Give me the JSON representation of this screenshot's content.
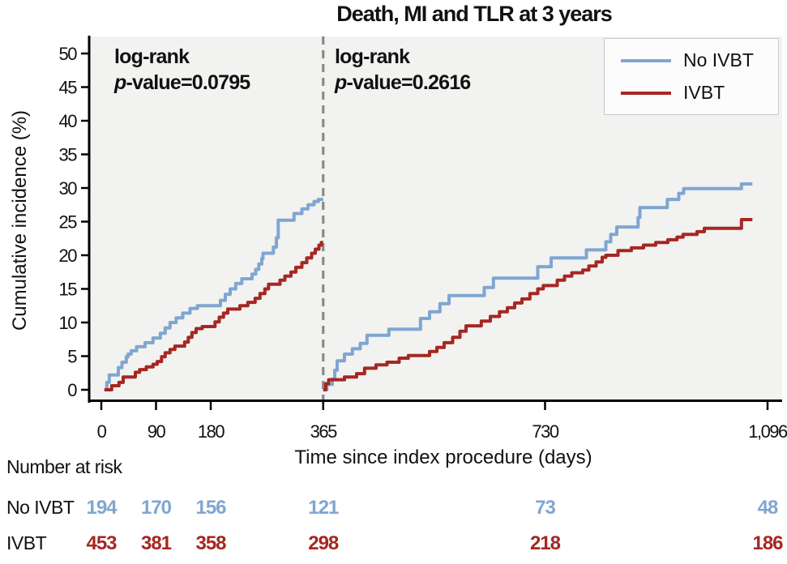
{
  "chart_data": {
    "type": "line",
    "subtype": "kaplan-meier-step",
    "title": "Death, MI and TLR at 3 years",
    "xlabel": "Time since index procedure (days)",
    "ylabel": "Cumulative incidence (%)",
    "xlim": [
      0,
      1096
    ],
    "ylim": [
      0,
      50
    ],
    "grid": false,
    "legend_position": "top-right",
    "plot_bg_color": "#f2f2f0",
    "landmark_line_day": 365,
    "landmark_line_color": "#8a8a8a",
    "x_ticks": [
      {
        "day": 0,
        "label": "0"
      },
      {
        "day": 90,
        "label": "90"
      },
      {
        "day": 180,
        "label": "180"
      },
      {
        "day": 365,
        "label": "365"
      },
      {
        "day": 730,
        "label": "730"
      },
      {
        "day": 1096,
        "label": "1,096"
      }
    ],
    "y_ticks": [
      {
        "value": 0,
        "label": "0"
      },
      {
        "value": 5,
        "label": "5"
      },
      {
        "value": 10,
        "label": "10"
      },
      {
        "value": 15,
        "label": "15"
      },
      {
        "value": 20,
        "label": "20"
      },
      {
        "value": 25,
        "label": "25"
      },
      {
        "value": 30,
        "label": "30"
      },
      {
        "value": 35,
        "label": "35"
      },
      {
        "value": 40,
        "label": "40"
      },
      {
        "value": 45,
        "label": "45"
      },
      {
        "value": 50,
        "label": "50"
      }
    ],
    "annotations": [
      {
        "line1": "log-rank",
        "p_label": "p",
        "p_value_text": "-value=0.0795"
      },
      {
        "line1": "log-rank",
        "p_label": "p",
        "p_value_text": "-value=0.2616"
      }
    ],
    "series": [
      {
        "name": "No IVBT",
        "color": "#7FA6D1",
        "segments": [
          {
            "end_day": 365,
            "points": [
              [
                5,
                0
              ],
              [
                9,
                1.1
              ],
              [
                13,
                2.2
              ],
              [
                28,
                3.3
              ],
              [
                34,
                4.1
              ],
              [
                41,
                4.9
              ],
              [
                44,
                5.3
              ],
              [
                49,
                5.8
              ],
              [
                58,
                6.4
              ],
              [
                72,
                7.0
              ],
              [
                85,
                7.7
              ],
              [
                97,
                8.4
              ],
              [
                105,
                9.2
              ],
              [
                113,
                10.0
              ],
              [
                123,
                10.7
              ],
              [
                134,
                11.4
              ],
              [
                146,
                12.1
              ],
              [
                158,
                12.5
              ],
              [
                196,
                13.3
              ],
              [
                204,
                14.2
              ],
              [
                212,
                15.0
              ],
              [
                221,
                15.8
              ],
              [
                231,
                16.5
              ],
              [
                248,
                17.2
              ],
              [
                254,
                17.9
              ],
              [
                259,
                18.7
              ],
              [
                264,
                19.5
              ],
              [
                266,
                20.3
              ],
              [
                283,
                21.2
              ],
              [
                288,
                22.6
              ],
              [
                291,
                25.2
              ],
              [
                317,
                26.2
              ],
              [
                330,
                26.9
              ],
              [
                340,
                27.5
              ],
              [
                350,
                28.0
              ],
              [
                357,
                28.3
              ]
            ]
          },
          {
            "end_day": 1071,
            "points": [
              [
                365,
                0
              ],
              [
                371,
                0.8
              ],
              [
                380,
                1.6
              ],
              [
                384,
                2.9
              ],
              [
                388,
                4.3
              ],
              [
                400,
                5.3
              ],
              [
                413,
                6.1
              ],
              [
                426,
                6.9
              ],
              [
                437,
                8.1
              ],
              [
                473,
                9.0
              ],
              [
                525,
                10.6
              ],
              [
                540,
                11.6
              ],
              [
                557,
                12.8
              ],
              [
                572,
                14.0
              ],
              [
                630,
                15.2
              ],
              [
                645,
                16.6
              ],
              [
                718,
                18.3
              ],
              [
                740,
                19.6
              ],
              [
                798,
                20.8
              ],
              [
                830,
                22.0
              ],
              [
                838,
                23.1
              ],
              [
                848,
                24.2
              ],
              [
                883,
                25.6
              ],
              [
                886,
                27.1
              ],
              [
                931,
                28.3
              ],
              [
                950,
                29.2
              ],
              [
                958,
                29.9
              ],
              [
                1053,
                30.6
              ]
            ]
          }
        ]
      },
      {
        "name": "IVBT",
        "color": "#A52722",
        "segments": [
          {
            "end_day": 365,
            "points": [
              [
                5,
                0
              ],
              [
                17,
                0.6
              ],
              [
                29,
                1.1
              ],
              [
                36,
                1.9
              ],
              [
                56,
                2.6
              ],
              [
                63,
                3.0
              ],
              [
                74,
                3.4
              ],
              [
                85,
                3.8
              ],
              [
                92,
                4.2
              ],
              [
                99,
                4.9
              ],
              [
                105,
                5.5
              ],
              [
                113,
                6.0
              ],
              [
                121,
                6.5
              ],
              [
                137,
                7.1
              ],
              [
                143,
                7.8
              ],
              [
                149,
                8.5
              ],
              [
                156,
                9.1
              ],
              [
                166,
                9.4
              ],
              [
                187,
                10.1
              ],
              [
                194,
                10.8
              ],
              [
                201,
                11.4
              ],
              [
                208,
                12.0
              ],
              [
                228,
                12.5
              ],
              [
                241,
                13.0
              ],
              [
                253,
                13.6
              ],
              [
                261,
                14.3
              ],
              [
                269,
                15.0
              ],
              [
                275,
                15.7
              ],
              [
                294,
                16.3
              ],
              [
                302,
                16.9
              ],
              [
                312,
                17.5
              ],
              [
                320,
                18.2
              ],
              [
                330,
                18.9
              ],
              [
                338,
                19.6
              ],
              [
                346,
                20.3
              ],
              [
                352,
                20.9
              ],
              [
                358,
                21.5
              ],
              [
                362,
                21.9
              ]
            ]
          },
          {
            "end_day": 1071,
            "points": [
              [
                365,
                0
              ],
              [
                369,
                0.9
              ],
              [
                374,
                1.5
              ],
              [
                400,
                1.9
              ],
              [
                420,
                2.4
              ],
              [
                433,
                3.2
              ],
              [
                452,
                3.7
              ],
              [
                470,
                4.1
              ],
              [
                490,
                4.7
              ],
              [
                505,
                5.1
              ],
              [
                540,
                5.7
              ],
              [
                552,
                6.3
              ],
              [
                564,
                7.0
              ],
              [
                578,
                7.8
              ],
              [
                590,
                8.7
              ],
              [
                600,
                9.5
              ],
              [
                625,
                10.2
              ],
              [
                640,
                10.9
              ],
              [
                655,
                11.6
              ],
              [
                668,
                12.2
              ],
              [
                680,
                12.9
              ],
              [
                692,
                13.5
              ],
              [
                705,
                14.3
              ],
              [
                718,
                15.0
              ],
              [
                727,
                15.5
              ],
              [
                750,
                16.3
              ],
              [
                762,
                16.9
              ],
              [
                774,
                17.4
              ],
              [
                792,
                17.8
              ],
              [
                802,
                18.4
              ],
              [
                814,
                19.0
              ],
              [
                824,
                19.7
              ],
              [
                830,
                20.0
              ],
              [
                850,
                20.7
              ],
              [
                872,
                21.1
              ],
              [
                892,
                21.5
              ],
              [
                912,
                21.9
              ],
              [
                932,
                22.3
              ],
              [
                947,
                22.7
              ],
              [
                957,
                23.1
              ],
              [
                980,
                23.5
              ],
              [
                992,
                24.0
              ],
              [
                1053,
                25.3
              ]
            ]
          }
        ]
      }
    ]
  },
  "risk_table": {
    "heading": "Number at risk",
    "time_labels": [
      "0",
      "90",
      "180",
      "365",
      "730",
      "1,096"
    ],
    "rows": [
      {
        "label": "No IVBT",
        "color": "#7FA6D1",
        "values": [
          "194",
          "170",
          "156",
          "121",
          "73",
          "48"
        ]
      },
      {
        "label": "IVBT",
        "color": "#A52722",
        "values": [
          "453",
          "381",
          "358",
          "298",
          "218",
          "186"
        ]
      }
    ]
  }
}
